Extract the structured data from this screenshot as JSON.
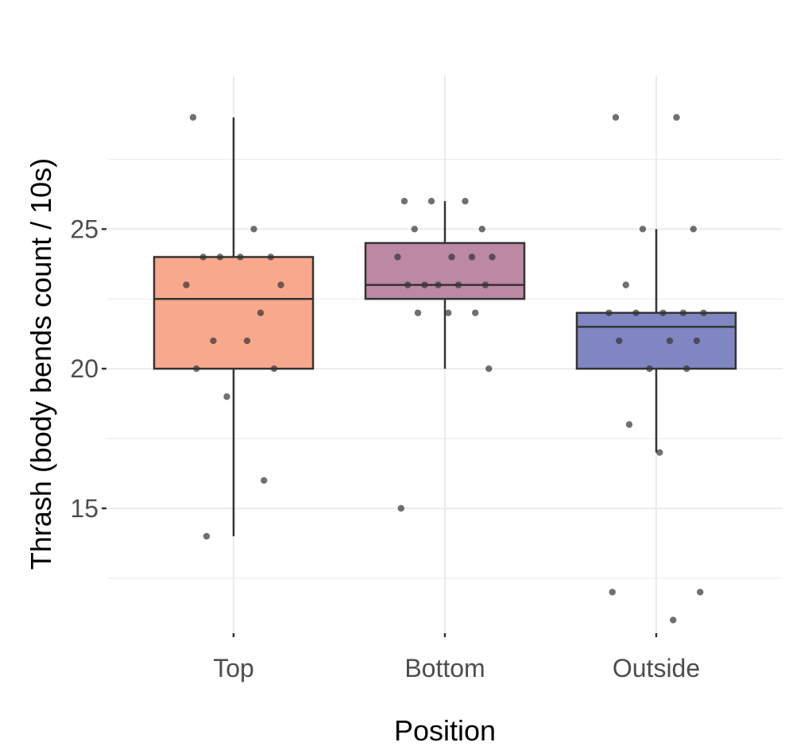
{
  "chart_data": {
    "type": "boxplot",
    "xlabel": "Position",
    "ylabel": "Thrash (body bends count / 10s)",
    "ylim": [
      10.5,
      30.5
    ],
    "y_ticks": [
      15,
      20,
      25
    ],
    "y_tick_labels": [
      "15",
      "20",
      "25"
    ],
    "grid": true,
    "legend": "none",
    "categories": [
      "Top",
      "Bottom",
      "Outside"
    ],
    "boxes": [
      {
        "name": "Top",
        "color": "#F8A98D",
        "min": 14,
        "q1": 20,
        "median": 22.5,
        "q3": 24,
        "max": 29,
        "points": [
          29,
          25,
          24,
          24,
          24,
          24,
          23,
          23,
          22,
          21,
          21,
          20,
          20,
          19,
          16,
          14
        ]
      },
      {
        "name": "Bottom",
        "color": "#BD88A4",
        "min": 20,
        "q1": 22.5,
        "median": 23,
        "q3": 24.5,
        "max": 26,
        "points": [
          26,
          26,
          26,
          25,
          25,
          24,
          24,
          24,
          24,
          23,
          23,
          23,
          23,
          23,
          22,
          22,
          22,
          20,
          15
        ]
      },
      {
        "name": "Outside",
        "color": "#7F86C2",
        "min": 17,
        "q1": 20,
        "median": 21.5,
        "q3": 22,
        "max": 25,
        "points": [
          29,
          29,
          25,
          25,
          23,
          22,
          22,
          22,
          22,
          22,
          21,
          21,
          21,
          20,
          20,
          18,
          17,
          12,
          12,
          11
        ]
      }
    ]
  }
}
